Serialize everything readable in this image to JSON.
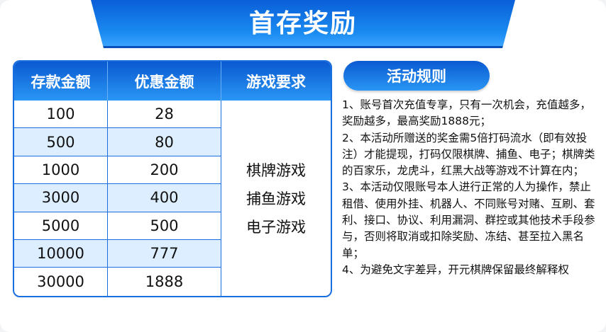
{
  "title": "首存奖励",
  "table": {
    "headers": [
      "存款金额",
      "优惠金额",
      "游戏要求"
    ],
    "rows": [
      {
        "deposit": "100",
        "bonus": "28"
      },
      {
        "deposit": "500",
        "bonus": "80"
      },
      {
        "deposit": "1000",
        "bonus": "200"
      },
      {
        "deposit": "3000",
        "bonus": "400"
      },
      {
        "deposit": "5000",
        "bonus": "500"
      },
      {
        "deposit": "10000",
        "bonus": "777"
      },
      {
        "deposit": "30000",
        "bonus": "1888"
      }
    ],
    "games": [
      "棋牌游戏",
      "捕鱼游戏",
      "电子游戏"
    ]
  },
  "rules": {
    "title": "活动规则",
    "lines": [
      "1、账号首次充值专享，只有一次机会，充值越多，奖励越多，最高奖励1888元；",
      "2、本活动所赠送的奖金需5倍打码流水（即有效投注）才能提现，打码仅限棋牌、捕鱼、电子；棋牌类的百家乐，龙虎斗，红黑大战等游戏不计算在内；",
      "3、本活动仅限账号本人进行正常的人为操作，禁止租借、使用外挂、机器人、不同账号对赌、互刷、套利、接口、协议、利用漏洞、群控或其他技术手段参与，否则将取消或扣除奖励、冻结、甚至拉入黑名单；",
      "4、为避免文字差异，开元棋牌保留最终解释权"
    ]
  },
  "colors": {
    "primary": "#1a6fe0",
    "alt_row": "#dceeff"
  }
}
